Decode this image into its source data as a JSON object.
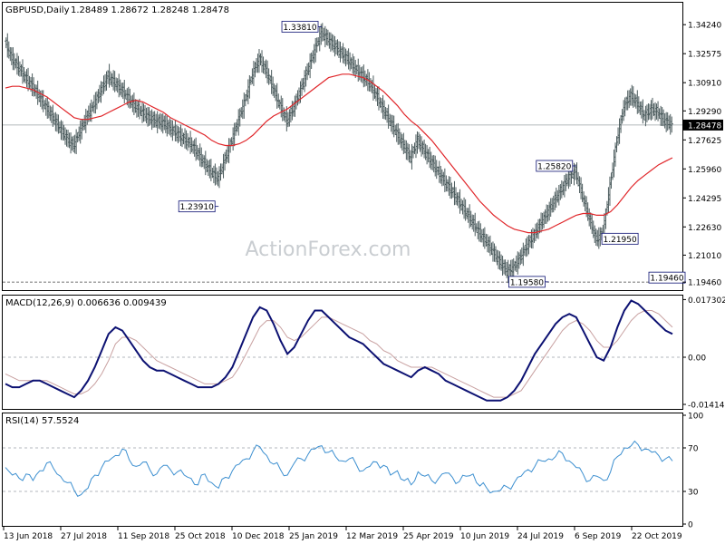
{
  "header": {
    "symbol": "GBPUSD,Daily",
    "ohlc": "1.28489 1.28672 1.28248 1.28478"
  },
  "watermark": "ActionForex.com",
  "colors": {
    "bar": "#4b5b5d",
    "ma": "#e0262a",
    "macd": "#0c1172",
    "signal": "#c8a0a0",
    "rsi": "#3c8fd0",
    "grid": "#9aa0a6",
    "text": "#000000",
    "label_border": "#0c1172"
  },
  "chart_data": [
    {
      "type": "ohlc",
      "title": "GBPUSD,Daily",
      "ylim": [
        1.19,
        1.355
      ],
      "y_ticks": [
        "1.34240",
        "1.32575",
        "1.30910",
        "1.29290",
        "1.27625",
        "1.25960",
        "1.24295",
        "1.22630",
        "1.21010",
        "1.19460"
      ],
      "current_price": "1.28478",
      "x_ticks": [
        "13 Jun 2018",
        "27 Jul 2018",
        "11 Sep 2018",
        "25 Oct 2018",
        "10 Dec 2018",
        "25 Jan 2019",
        "12 Mar 2019",
        "25 Apr 2019",
        "10 Jun 2019",
        "24 Jul 2019",
        "6 Sep 2019",
        "22 Oct 2019"
      ],
      "closes": [
        1.333,
        1.323,
        1.318,
        1.312,
        1.307,
        1.301,
        1.295,
        1.289,
        1.283,
        1.277,
        1.273,
        1.282,
        1.29,
        1.297,
        1.305,
        1.313,
        1.309,
        1.305,
        1.3,
        1.295,
        1.292,
        1.289,
        1.287,
        1.286,
        1.283,
        1.28,
        1.277,
        1.274,
        1.269,
        1.263,
        1.258,
        1.254,
        1.265,
        1.276,
        1.288,
        1.3,
        1.314,
        1.323,
        1.316,
        1.306,
        1.296,
        1.287,
        1.295,
        1.305,
        1.316,
        1.327,
        1.338,
        1.334,
        1.33,
        1.326,
        1.322,
        1.317,
        1.313,
        1.309,
        1.302,
        1.294,
        1.287,
        1.28,
        1.273,
        1.266,
        1.276,
        1.27,
        1.264,
        1.258,
        1.252,
        1.247,
        1.241,
        1.235,
        1.229,
        1.223,
        1.218,
        1.212,
        1.206,
        1.201,
        1.203,
        1.209,
        1.216,
        1.222,
        1.229,
        1.235,
        1.242,
        1.248,
        1.255,
        1.258,
        1.244,
        1.231,
        1.219,
        1.223,
        1.25,
        1.276,
        1.295,
        1.302,
        1.297,
        1.29,
        1.294,
        1.292,
        1.287,
        1.285
      ],
      "ma_values": [
        1.306,
        1.307,
        1.307,
        1.306,
        1.305,
        1.303,
        1.301,
        1.298,
        1.295,
        1.292,
        1.289,
        1.288,
        1.288,
        1.289,
        1.29,
        1.292,
        1.294,
        1.296,
        1.298,
        1.299,
        1.298,
        1.296,
        1.294,
        1.292,
        1.289,
        1.287,
        1.285,
        1.283,
        1.281,
        1.279,
        1.276,
        1.274,
        1.273,
        1.273,
        1.274,
        1.276,
        1.279,
        1.283,
        1.287,
        1.29,
        1.292,
        1.294,
        1.297,
        1.3,
        1.303,
        1.306,
        1.309,
        1.312,
        1.313,
        1.314,
        1.314,
        1.313,
        1.312,
        1.31,
        1.307,
        1.304,
        1.3,
        1.296,
        1.291,
        1.287,
        1.284,
        1.28,
        1.276,
        1.271,
        1.266,
        1.261,
        1.256,
        1.251,
        1.246,
        1.241,
        1.237,
        1.233,
        1.23,
        1.227,
        1.225,
        1.224,
        1.223,
        1.223,
        1.224,
        1.225,
        1.227,
        1.229,
        1.231,
        1.233,
        1.234,
        1.234,
        1.233,
        1.233,
        1.235,
        1.239,
        1.244,
        1.249,
        1.253,
        1.256,
        1.259,
        1.262,
        1.264,
        1.266
      ],
      "annotations": [
        {
          "text": "1.33810",
          "value": 1.3381,
          "pos": 46
        },
        {
          "text": "1.23910",
          "value": 1.2391,
          "pos": 31
        },
        {
          "text": "1.25820",
          "value": 1.2582,
          "pos": 83
        },
        {
          "text": "1.21950",
          "value": 1.2195,
          "pos": 87
        },
        {
          "text": "1.19580",
          "value": 1.1958,
          "pos": 79
        },
        {
          "text": "1.19460",
          "value": 1.1946,
          "pos": 97
        }
      ]
    },
    {
      "type": "line",
      "title": "MACD(12,26,9) 0.006636 0.009439",
      "ylim": [
        -0.0155,
        0.0185
      ],
      "y_ticks": [
        {
          "label": "0.017302",
          "value": 0.017302
        },
        {
          "label": "0.00",
          "value": 0
        },
        {
          "label": "-0.014148",
          "value": -0.014148
        }
      ],
      "series": [
        {
          "values": [
            -0.008,
            -0.009,
            -0.009,
            -0.008,
            -0.007,
            -0.007,
            -0.008,
            -0.009,
            -0.01,
            -0.011,
            -0.012,
            -0.01,
            -0.007,
            -0.003,
            0.002,
            0.007,
            0.009,
            0.008,
            0.005,
            0.002,
            -0.001,
            -0.003,
            -0.004,
            -0.004,
            -0.005,
            -0.006,
            -0.007,
            -0.008,
            -0.009,
            -0.009,
            -0.009,
            -0.008,
            -0.006,
            -0.003,
            0.002,
            0.007,
            0.012,
            0.015,
            0.014,
            0.01,
            0.005,
            0.001,
            0.003,
            0.007,
            0.011,
            0.014,
            0.014,
            0.012,
            0.01,
            0.008,
            0.006,
            0.005,
            0.004,
            0.002,
            0.0,
            -0.002,
            -0.003,
            -0.004,
            -0.005,
            -0.006,
            -0.004,
            -0.003,
            -0.004,
            -0.005,
            -0.007,
            -0.008,
            -0.009,
            -0.01,
            -0.011,
            -0.012,
            -0.013,
            -0.013,
            -0.013,
            -0.012,
            -0.01,
            -0.007,
            -0.003,
            0.001,
            0.004,
            0.007,
            0.01,
            0.012,
            0.013,
            0.012,
            0.008,
            0.004,
            0.0,
            -0.001,
            0.003,
            0.009,
            0.014,
            0.017,
            0.016,
            0.014,
            0.012,
            0.01,
            0.008,
            0.007
          ]
        },
        {
          "values": [
            -0.005,
            -0.006,
            -0.007,
            -0.007,
            -0.007,
            -0.007,
            -0.007,
            -0.008,
            -0.009,
            -0.01,
            -0.011,
            -0.011,
            -0.01,
            -0.008,
            -0.005,
            -0.001,
            0.004,
            0.006,
            0.006,
            0.005,
            0.003,
            0.001,
            -0.001,
            -0.002,
            -0.003,
            -0.004,
            -0.005,
            -0.006,
            -0.007,
            -0.008,
            -0.008,
            -0.008,
            -0.007,
            -0.006,
            -0.003,
            0.001,
            0.005,
            0.009,
            0.011,
            0.011,
            0.009,
            0.006,
            0.005,
            0.006,
            0.008,
            0.01,
            0.012,
            0.012,
            0.011,
            0.01,
            0.009,
            0.008,
            0.007,
            0.005,
            0.004,
            0.002,
            0.001,
            -0.001,
            -0.002,
            -0.003,
            -0.003,
            -0.003,
            -0.003,
            -0.004,
            -0.005,
            -0.006,
            -0.007,
            -0.008,
            -0.009,
            -0.01,
            -0.011,
            -0.012,
            -0.012,
            -0.012,
            -0.011,
            -0.01,
            -0.007,
            -0.004,
            -0.001,
            0.002,
            0.005,
            0.008,
            0.01,
            0.011,
            0.01,
            0.008,
            0.005,
            0.003,
            0.003,
            0.005,
            0.008,
            0.011,
            0.013,
            0.014,
            0.014,
            0.013,
            0.011,
            0.009
          ]
        }
      ]
    },
    {
      "type": "line",
      "title": "RSI(14) 57.5524",
      "ylim": [
        0,
        100
      ],
      "y_ticks": [
        {
          "label": "100",
          "value": 100
        },
        {
          "label": "70",
          "value": 70
        },
        {
          "label": "30",
          "value": 30
        },
        {
          "label": "0",
          "value": 0
        }
      ],
      "series": [
        {
          "values": [
            52,
            45,
            42,
            46,
            40,
            49,
            56,
            51,
            44,
            38,
            31,
            27,
            33,
            45,
            52,
            58,
            63,
            69,
            59,
            53,
            57,
            50,
            46,
            54,
            50,
            48,
            45,
            42,
            36,
            46,
            38,
            33,
            43,
            49,
            55,
            60,
            67,
            71,
            63,
            55,
            50,
            45,
            56,
            60,
            64,
            69,
            72,
            66,
            62,
            58,
            60,
            55,
            49,
            53,
            57,
            54,
            45,
            49,
            40,
            36,
            48,
            44,
            40,
            42,
            47,
            43,
            39,
            44,
            46,
            35,
            33,
            30,
            31,
            34,
            38,
            44,
            50,
            53,
            58,
            60,
            62,
            65,
            58,
            52,
            46,
            40,
            44,
            40,
            48,
            62,
            70,
            72,
            73,
            69,
            66,
            63,
            60,
            58
          ]
        }
      ]
    }
  ]
}
